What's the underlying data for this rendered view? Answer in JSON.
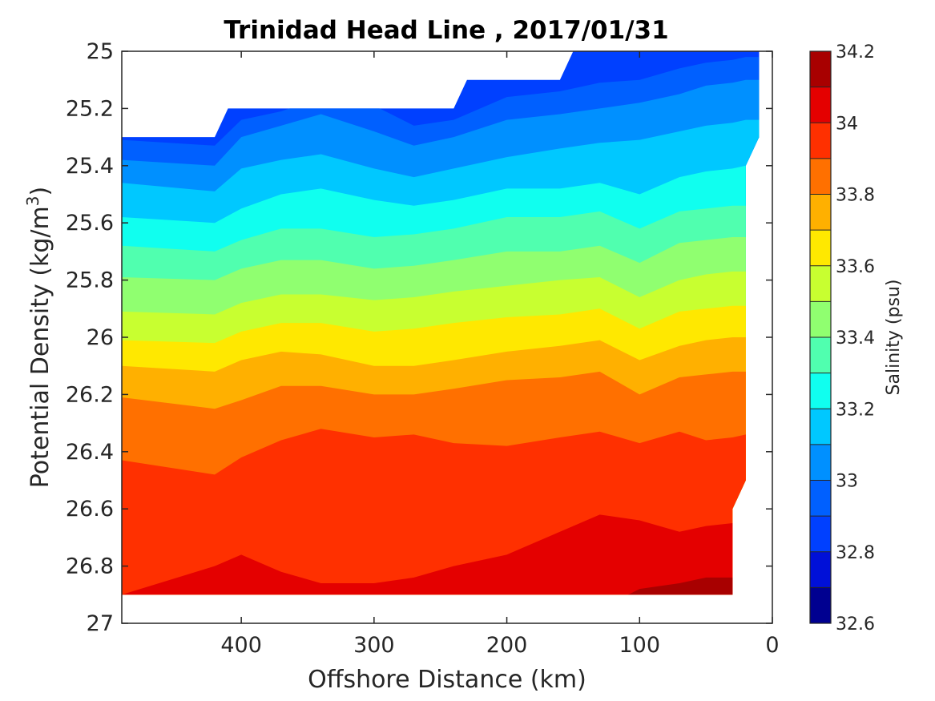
{
  "chart_data": {
    "type": "heatmap",
    "title": "Trinidad Head Line , 2017/01/31",
    "xlabel": "Offshore Distance (km)",
    "ylabel_main": "Potential Density (kg/m",
    "ylabel_sup": "3",
    "ylabel_end": ")",
    "colorbar_label": "Salinity (psu)",
    "xlim": [
      490,
      0
    ],
    "ylim": [
      27,
      25
    ],
    "x_reversed": true,
    "y_reversed": true,
    "x_ticks": [
      400,
      300,
      200,
      100,
      0
    ],
    "x_tick_labels": [
      "400",
      "300",
      "200",
      "100",
      "0"
    ],
    "y_ticks": [
      25,
      25.2,
      25.4,
      25.6,
      25.8,
      26,
      26.2,
      26.4,
      26.6,
      26.8,
      27
    ],
    "y_tick_labels": [
      "25",
      "25.2",
      "25.4",
      "25.6",
      "25.8",
      "26",
      "26.2",
      "26.4",
      "26.6",
      "26.8",
      "27"
    ],
    "colorbar_levels": [
      32.6,
      32.7,
      32.8,
      32.9,
      33.0,
      33.1,
      33.2,
      33.3,
      33.4,
      33.5,
      33.6,
      33.7,
      33.8,
      33.9,
      34.0,
      34.1,
      34.2
    ],
    "colorbar_colors": [
      "#000090",
      "#0010d8",
      "#0040ff",
      "#0060ff",
      "#0090ff",
      "#00c8ff",
      "#10ffef",
      "#50ffaf",
      "#90ff70",
      "#c8ff30",
      "#ffe800",
      "#ffb000",
      "#ff7000",
      "#ff3000",
      "#e40000",
      "#a80000"
    ],
    "colorbar_ticks": [
      32.6,
      32.8,
      33,
      33.2,
      33.4,
      33.6,
      33.8,
      34,
      34.2
    ],
    "colorbar_tick_labels": [
      "32.6",
      "32.8",
      "33",
      "33.2",
      "33.4",
      "33.6",
      "33.8",
      "34",
      "34.2"
    ],
    "contour_x": [
      490,
      420,
      400,
      370,
      340,
      300,
      270,
      240,
      200,
      160,
      130,
      100,
      70,
      50,
      30,
      20
    ],
    "contour_boundaries": [
      {
        "level": 32.9,
        "y": [
          25.31,
          25.33,
          25.24,
          25.21,
          25.16,
          25.19,
          25.26,
          25.24,
          25.16,
          25.14,
          25.11,
          25.1,
          25.06,
          25.04,
          25.03,
          25.02
        ]
      },
      {
        "level": 33.0,
        "y": [
          25.38,
          25.4,
          25.3,
          25.26,
          25.22,
          25.28,
          25.33,
          25.3,
          25.24,
          25.22,
          25.2,
          25.18,
          25.15,
          25.12,
          25.11,
          25.1
        ]
      },
      {
        "level": 33.1,
        "y": [
          25.46,
          25.49,
          25.41,
          25.38,
          25.36,
          25.41,
          25.44,
          25.41,
          25.37,
          25.34,
          25.32,
          25.31,
          25.28,
          25.26,
          25.25,
          25.24
        ]
      },
      {
        "level": 33.2,
        "y": [
          25.58,
          25.6,
          25.55,
          25.5,
          25.48,
          25.52,
          25.54,
          25.52,
          25.48,
          25.48,
          25.46,
          25.5,
          25.44,
          25.42,
          25.41,
          25.4
        ]
      },
      {
        "level": 33.3,
        "y": [
          25.68,
          25.7,
          25.66,
          25.62,
          25.62,
          25.65,
          25.64,
          25.62,
          25.58,
          25.58,
          25.56,
          25.62,
          25.56,
          25.55,
          25.54,
          25.54
        ]
      },
      {
        "level": 33.4,
        "y": [
          25.79,
          25.8,
          25.76,
          25.73,
          25.73,
          25.76,
          25.75,
          25.73,
          25.7,
          25.7,
          25.68,
          25.74,
          25.67,
          25.66,
          25.65,
          25.65
        ]
      },
      {
        "level": 33.5,
        "y": [
          25.91,
          25.92,
          25.88,
          25.85,
          25.85,
          25.87,
          25.86,
          25.84,
          25.82,
          25.8,
          25.79,
          25.86,
          25.8,
          25.78,
          25.77,
          25.77
        ]
      },
      {
        "level": 33.6,
        "y": [
          26.01,
          26.02,
          25.98,
          25.95,
          25.95,
          25.98,
          25.97,
          25.95,
          25.93,
          25.92,
          25.9,
          25.97,
          25.91,
          25.9,
          25.89,
          25.89
        ]
      },
      {
        "level": 33.7,
        "y": [
          26.1,
          26.12,
          26.08,
          26.05,
          26.06,
          26.1,
          26.1,
          26.08,
          26.05,
          26.03,
          26.01,
          26.08,
          26.03,
          26.01,
          26.0,
          26.0
        ]
      },
      {
        "level": 33.8,
        "y": [
          26.21,
          26.25,
          26.22,
          26.17,
          26.17,
          26.2,
          26.2,
          26.18,
          26.15,
          26.14,
          26.12,
          26.2,
          26.14,
          26.13,
          26.12,
          26.12
        ]
      },
      {
        "level": 33.9,
        "y": [
          26.43,
          26.48,
          26.42,
          26.36,
          26.32,
          26.35,
          26.34,
          26.37,
          26.38,
          26.35,
          26.33,
          26.37,
          26.33,
          26.36,
          26.35,
          26.34
        ]
      },
      {
        "level": 34.0,
        "y": [
          26.9,
          26.8,
          26.76,
          26.82,
          26.86,
          26.86,
          26.84,
          26.8,
          26.76,
          26.68,
          26.62,
          26.64,
          26.68,
          26.66,
          26.65,
          26.66
        ]
      },
      {
        "level": 34.1,
        "y": [
          26.95,
          26.95,
          26.95,
          26.95,
          26.95,
          26.95,
          26.95,
          26.95,
          26.95,
          26.95,
          26.95,
          26.88,
          26.86,
          26.84,
          26.84,
          26.84
        ]
      }
    ],
    "data_top_boundary": [
      [
        490,
        25.3
      ],
      [
        420,
        25.3
      ],
      [
        410,
        25.2
      ],
      [
        240,
        25.2
      ],
      [
        230,
        25.1
      ],
      [
        160,
        25.1
      ],
      [
        150,
        25.0
      ],
      [
        10,
        25.0
      ],
      [
        10,
        25.3
      ],
      [
        20,
        25.4
      ]
    ],
    "data_right_boundary": [
      [
        20,
        25.4
      ],
      [
        20,
        26.5
      ],
      [
        30,
        26.6
      ],
      [
        30,
        26.9
      ]
    ],
    "data_bottom": 26.9,
    "grid": false,
    "colorbar_position": "right"
  }
}
